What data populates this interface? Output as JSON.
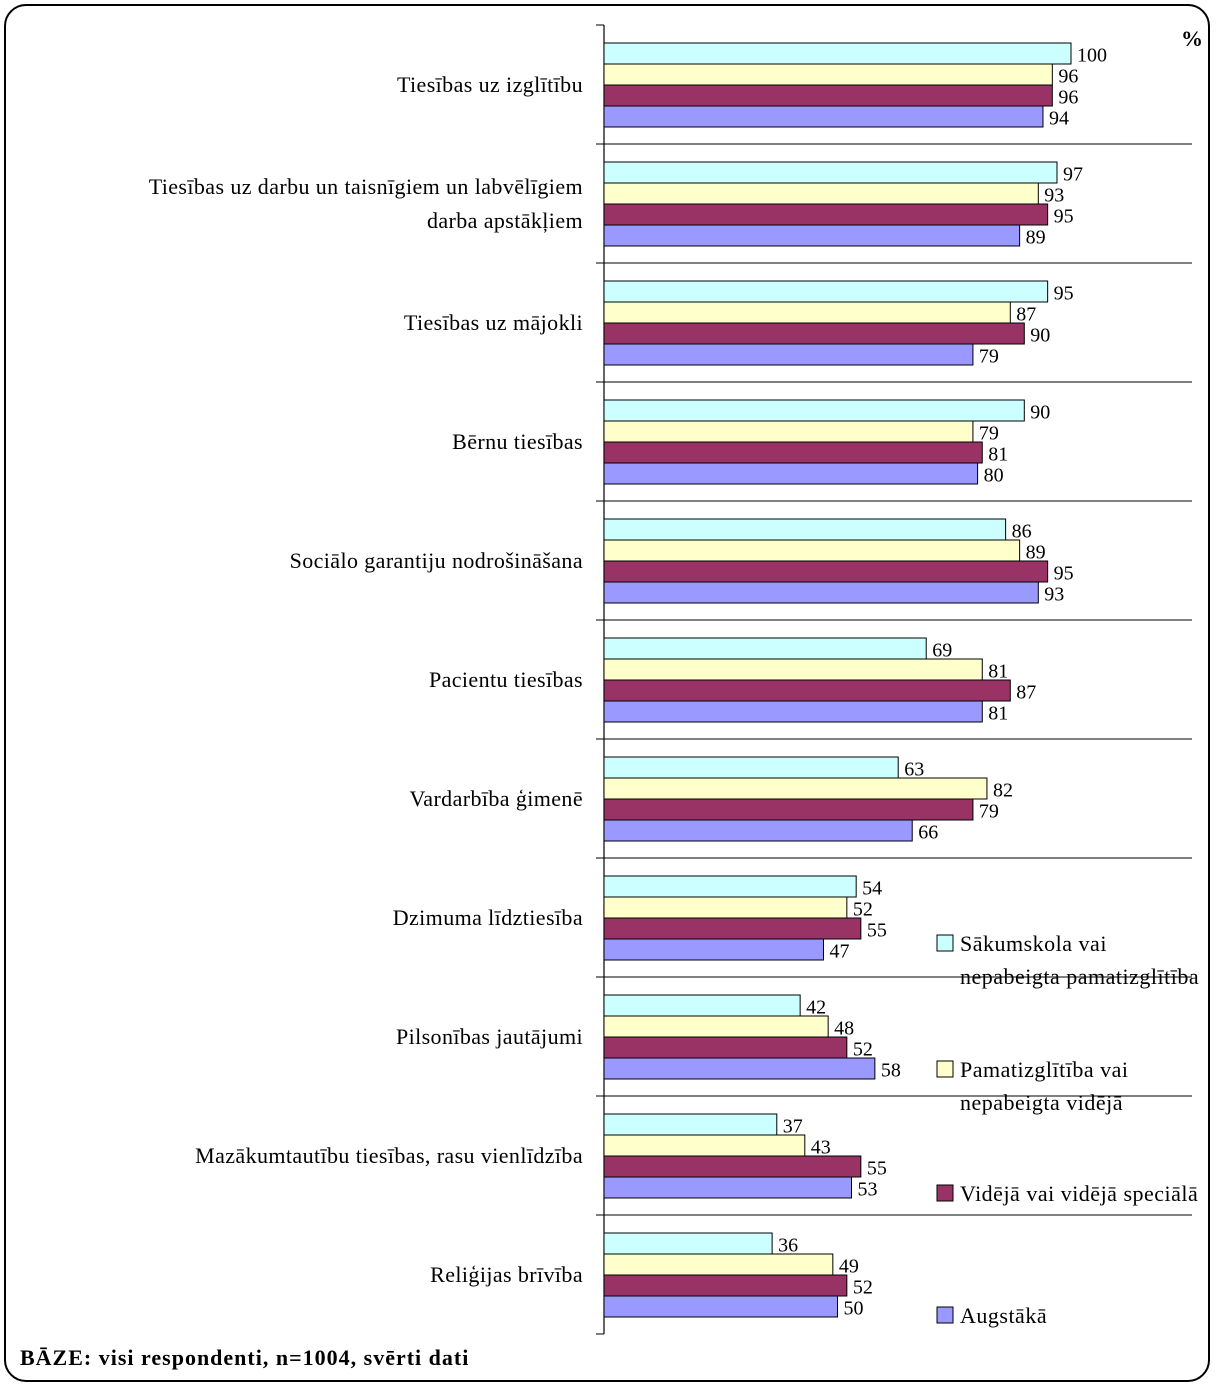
{
  "chart_data": {
    "type": "bar",
    "orientation": "horizontal",
    "unit_label": "%",
    "xlim": [
      0,
      100
    ],
    "categories": [
      "Tiesības uz izglītību",
      "Tiesības uz darbu un taisnīgiem un labvēlīgiem darba apstākļiem",
      "Tiesības uz mājokli",
      "Bērnu tiesības",
      "Sociālo garantiju nodrošināšana",
      "Pacientu tiesības",
      "Vardarbība ģimenē",
      "Dzimuma līdztiesība",
      "Pilsonības jautājumi",
      "Mazākumtautību tiesības, rasu vienlīdzība",
      "Reliģijas brīvība"
    ],
    "category_lines": [
      [
        "Tiesības uz izglītību"
      ],
      [
        "Tiesības uz darbu un taisnīgiem un labvēlīgiem",
        "darba apstākļiem"
      ],
      [
        "Tiesības uz mājokli"
      ],
      [
        "Bērnu tiesības"
      ],
      [
        "Sociālo garantiju nodrošināšana"
      ],
      [
        "Pacientu tiesības"
      ],
      [
        "Vardarbība ģimenē"
      ],
      [
        "Dzimuma līdztiesība"
      ],
      [
        "Pilsonības jautājumi"
      ],
      [
        "Mazākumtautību tiesības, rasu vienlīdzība"
      ],
      [
        "Reliģijas brīvība"
      ]
    ],
    "series": [
      {
        "name": "Sākumskola vai nepabeigta pamatizglītība",
        "name_lines": [
          "Sākumskola vai",
          "nepabeigta pamatizglītība"
        ],
        "color": "#ccffff",
        "values": [
          100,
          97,
          95,
          90,
          86,
          69,
          63,
          54,
          42,
          37,
          36
        ]
      },
      {
        "name": "Pamatizglītība vai nepabeigta vidējā",
        "name_lines": [
          "Pamatizglītība vai",
          "nepabeigta vidējā"
        ],
        "color": "#ffffcc",
        "values": [
          96,
          93,
          87,
          79,
          89,
          81,
          82,
          52,
          48,
          43,
          49
        ]
      },
      {
        "name": "Vidējā vai vidējā speciālā",
        "name_lines": [
          "Vidējā vai vidējā speciālā"
        ],
        "color": "#993366",
        "values": [
          96,
          95,
          90,
          81,
          95,
          87,
          79,
          55,
          52,
          55,
          52
        ]
      },
      {
        "name": "Augstākā",
        "name_lines": [
          "Augstākā"
        ],
        "color": "#9999ff",
        "values": [
          94,
          89,
          79,
          80,
          93,
          81,
          66,
          47,
          58,
          53,
          50
        ]
      }
    ],
    "legend_position": "right",
    "grid": false
  },
  "footer": {
    "base_note": "BĀZE: visi respondenti, n=1004, svērti dati"
  }
}
